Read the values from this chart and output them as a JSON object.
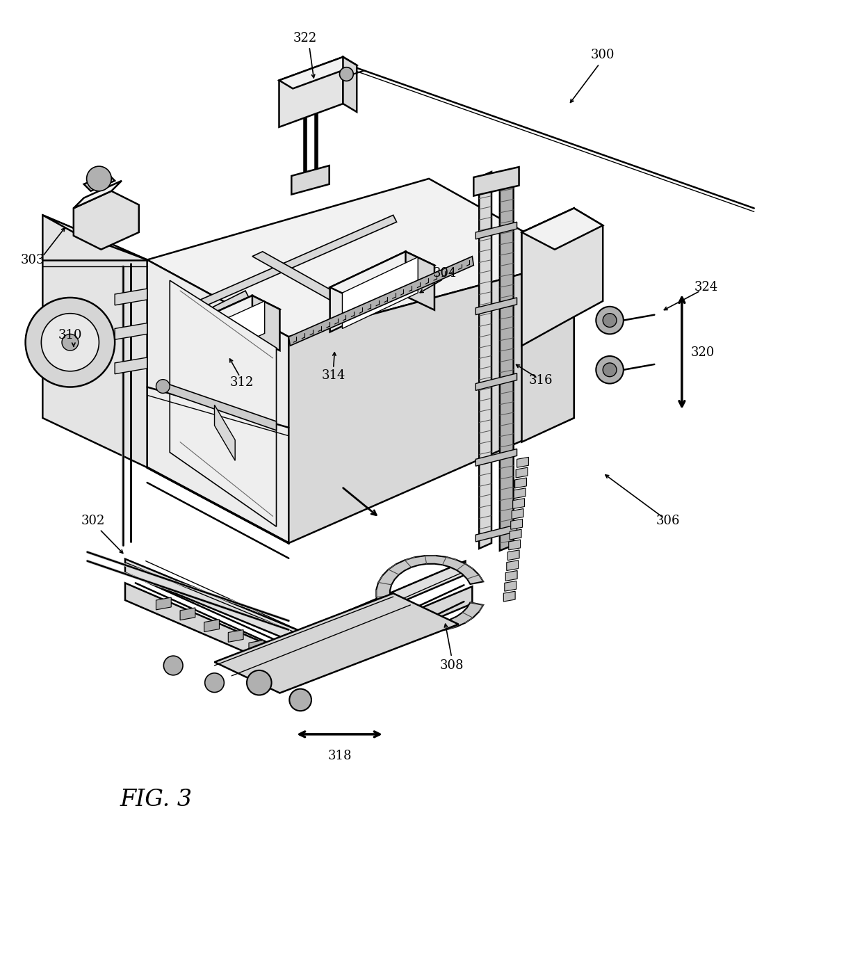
{
  "bg_color": "#ffffff",
  "line_color": "#000000",
  "fig_label": "FIG. 3",
  "fig_label_fontsize": 24,
  "ref_fontsize": 13,
  "lw_main": 1.8,
  "lw_thin": 1.0,
  "lw_thick": 2.5,
  "gray_light": "#f2f2f2",
  "gray_mid": "#d8d8d8",
  "gray_dark": "#b0b0b0",
  "gray_darker": "#888888"
}
